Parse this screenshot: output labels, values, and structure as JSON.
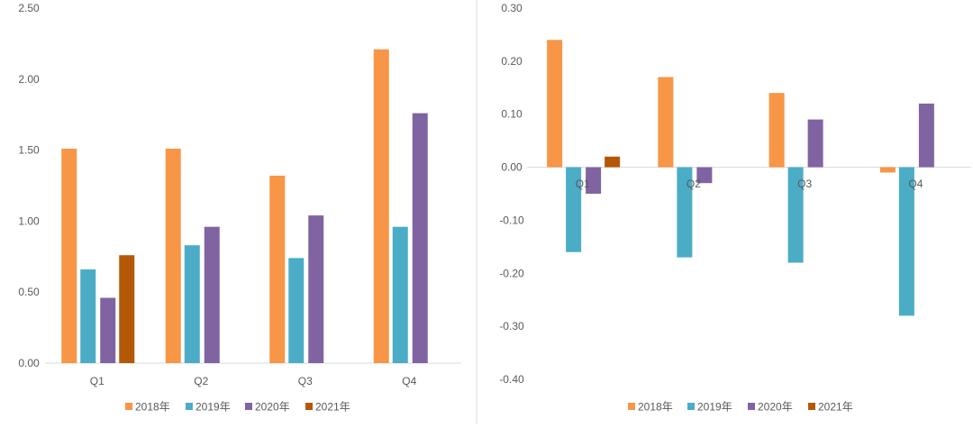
{
  "colors": {
    "series": [
      "#F79646",
      "#4BACC6",
      "#8064A2",
      "#B35806"
    ],
    "axis": "#D9D9D9",
    "text": "#595959",
    "divider": "#D9D9D9"
  },
  "chart_data": [
    {
      "type": "bar",
      "categories": [
        "Q1",
        "Q2",
        "Q3",
        "Q4"
      ],
      "series": [
        {
          "name": "2018年",
          "values": [
            1.51,
            1.51,
            1.32,
            2.21
          ]
        },
        {
          "name": "2019年",
          "values": [
            0.66,
            0.83,
            0.74,
            0.96
          ]
        },
        {
          "name": "2020年",
          "values": [
            0.46,
            0.96,
            1.04,
            1.76
          ]
        },
        {
          "name": "2021年",
          "values": [
            0.76,
            null,
            null,
            null
          ]
        }
      ],
      "ylim": [
        0,
        2.5
      ],
      "yticks": [
        "0.00",
        "0.50",
        "1.00",
        "1.50",
        "2.00",
        "2.50"
      ],
      "grid": false,
      "legend": "bottom"
    },
    {
      "type": "bar",
      "categories": [
        "Q1",
        "Q2",
        "Q3",
        "Q4"
      ],
      "series": [
        {
          "name": "2018年",
          "values": [
            0.24,
            0.17,
            0.14,
            -0.01
          ]
        },
        {
          "name": "2019年",
          "values": [
            -0.16,
            -0.17,
            -0.18,
            -0.28
          ]
        },
        {
          "name": "2020年",
          "values": [
            -0.05,
            -0.03,
            0.09,
            0.12
          ]
        },
        {
          "name": "2021年",
          "values": [
            0.02,
            null,
            null,
            null
          ]
        }
      ],
      "ylim": [
        -0.4,
        0.3
      ],
      "yticks": [
        "-0.40",
        "-0.30",
        "-0.20",
        "-0.10",
        "0.00",
        "0.10",
        "0.20",
        "0.30"
      ],
      "grid": false,
      "legend": "bottom"
    }
  ]
}
